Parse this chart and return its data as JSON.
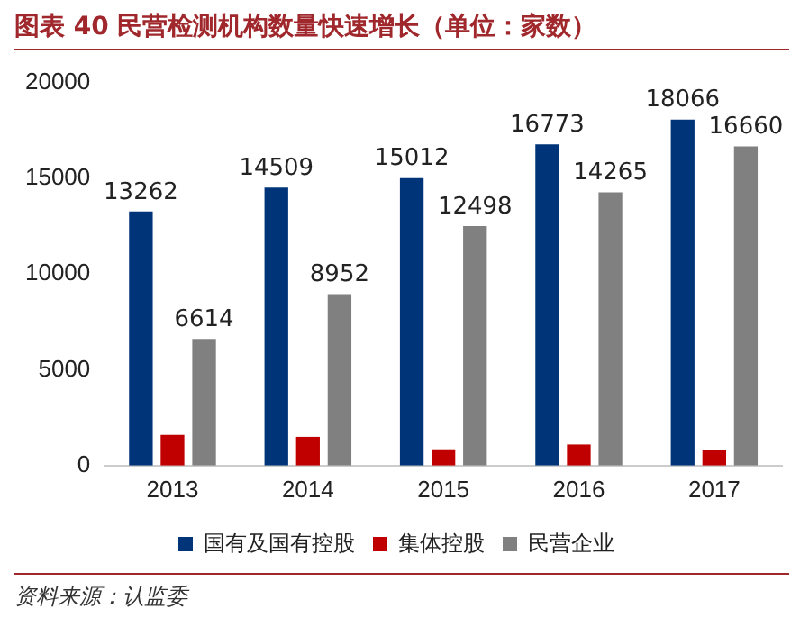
{
  "chart_data": {
    "type": "bar",
    "title": "图表 40  民营检测机构数量快速增长（单位：家数）",
    "categories": [
      "2013",
      "2014",
      "2015",
      "2016",
      "2017"
    ],
    "series": [
      {
        "name": "国有及国有控股",
        "color": "#003478",
        "values": [
          13262,
          14509,
          15012,
          16773,
          18066
        ],
        "value_labels": [
          "13262",
          "14509",
          "15012",
          "16773",
          "18066"
        ]
      },
      {
        "name": "集体控股",
        "color": "#c00000",
        "values": [
          1600,
          1500,
          850,
          1100,
          800
        ]
      },
      {
        "name": "民营企业",
        "color": "#808080",
        "values": [
          6614,
          8952,
          12498,
          14265,
          16660
        ],
        "value_labels": [
          "6614",
          "8952",
          "12498",
          "14265",
          "16660"
        ]
      }
    ],
    "ylim": [
      0,
      20000
    ],
    "yticks": [
      0,
      5000,
      10000,
      15000,
      20000
    ],
    "grid": false,
    "legend": "bottom",
    "annotations": [
      "资料来源：认监委"
    ]
  }
}
